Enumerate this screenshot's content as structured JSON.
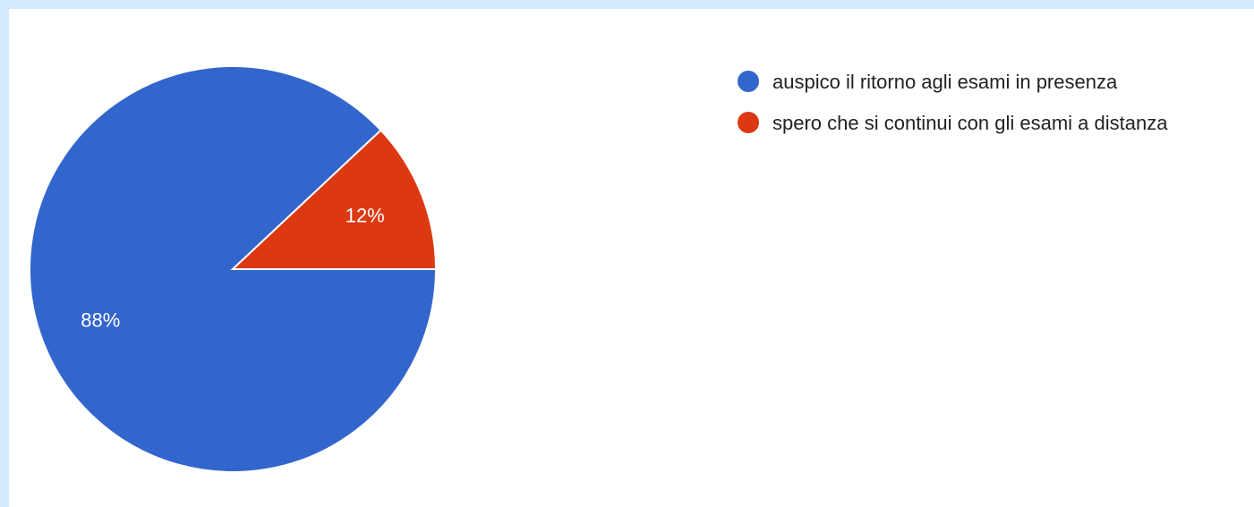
{
  "chart_data": {
    "type": "pie",
    "series": [
      {
        "name": "auspico il ritorno agli esami in presenza",
        "color": "#3366cc",
        "values": [
          88
        ],
        "value_labels": [
          "88%"
        ]
      },
      {
        "name": "spero che si continui con gli esami a distanza",
        "color": "#dc3912",
        "values": [
          12
        ],
        "value_labels": [
          "12%"
        ]
      }
    ],
    "legend": "right"
  }
}
